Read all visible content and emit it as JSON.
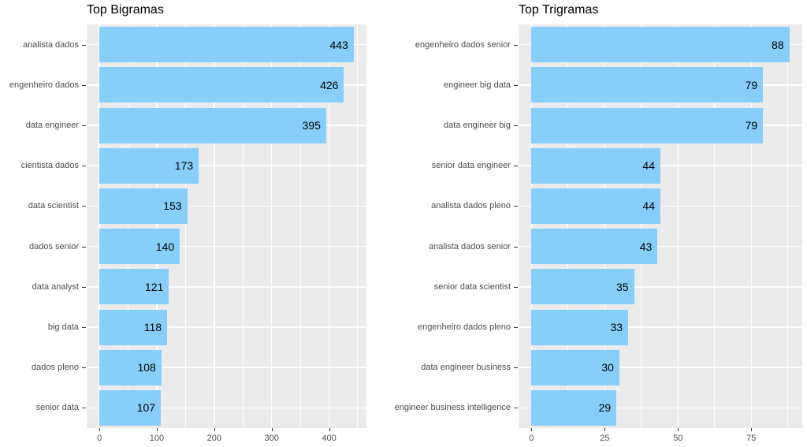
{
  "page": {
    "background": "#FFFFFF"
  },
  "chart_data": [
    {
      "type": "bar",
      "orientation": "horizontal",
      "title": "Top Bigramas",
      "categories": [
        "analista dados",
        "engenheiro dados",
        "data engineer",
        "cientista dados",
        "data scientist",
        "dados senior",
        "data analyst",
        "big data",
        "dados pleno",
        "senior data"
      ],
      "values": [
        443,
        426,
        395,
        173,
        153,
        140,
        121,
        118,
        108,
        107
      ],
      "value_labels": [
        "443",
        "426",
        "395",
        "173",
        "153",
        "140",
        "121",
        "118",
        "108",
        "107"
      ],
      "x_major_ticks": [
        0,
        100,
        200,
        300,
        400
      ],
      "x_tick_labels": [
        "0",
        "100",
        "200",
        "300",
        "400"
      ],
      "x_minor_ticks": [
        50,
        150,
        250,
        350,
        450
      ],
      "xlim": [
        0,
        443
      ],
      "axis_expand_fraction": 0.05,
      "grid": true,
      "legend": "none",
      "bar_color": "#87CEFA",
      "panel_bg": "#EBEBEB",
      "grid_color": "#FFFFFF",
      "axis_text_color": "#4D4D4D",
      "tick_mark_color": "#333333",
      "value_label_color": "#000000",
      "title_color": "#000000"
    },
    {
      "type": "bar",
      "orientation": "horizontal",
      "title": "Top Trigramas",
      "categories": [
        "engenheiro dados senior",
        "engineer big data",
        "data engineer big",
        "senior data engineer",
        "analista dados pleno",
        "analista dados senior",
        "senior data scientist",
        "engenheiro dados pleno",
        "data engineer business",
        "engineer business intelligence"
      ],
      "values": [
        88,
        79,
        79,
        44,
        44,
        43,
        35,
        33,
        30,
        29
      ],
      "value_labels": [
        "88",
        "79",
        "79",
        "44",
        "44",
        "43",
        "35",
        "33",
        "30",
        "29"
      ],
      "x_major_ticks": [
        0,
        25,
        50,
        75
      ],
      "x_tick_labels": [
        "0",
        "25",
        "50",
        "75"
      ],
      "x_minor_ticks": [
        12.5,
        37.5,
        62.5,
        87.5
      ],
      "xlim": [
        0,
        88
      ],
      "axis_expand_fraction": 0.05,
      "grid": true,
      "legend": "none",
      "bar_color": "#87CEFA",
      "panel_bg": "#EBEBEB",
      "grid_color": "#FFFFFF",
      "axis_text_color": "#4D4D4D",
      "tick_mark_color": "#333333",
      "value_label_color": "#000000",
      "title_color": "#000000"
    }
  ]
}
